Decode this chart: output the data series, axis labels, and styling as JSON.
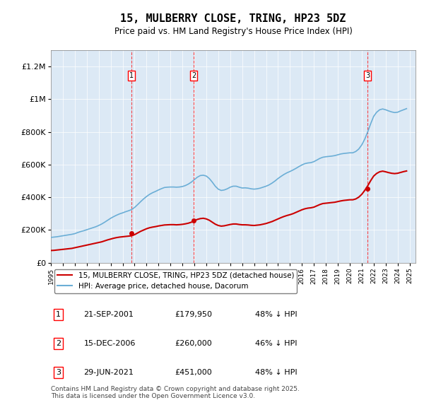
{
  "title": "15, MULBERRY CLOSE, TRING, HP23 5DZ",
  "subtitle": "Price paid vs. HM Land Registry's House Price Index (HPI)",
  "hpi_color": "#6baed6",
  "price_color": "#cc0000",
  "background_color": "#dce9f5",
  "plot_bg_color": "#dce9f5",
  "ylim": [
    0,
    1300000
  ],
  "yticks": [
    0,
    200000,
    400000,
    600000,
    800000,
    1000000,
    1200000
  ],
  "ytick_labels": [
    "£0",
    "£200K",
    "£400K",
    "£600K",
    "£800K",
    "£1M",
    "£1.2M"
  ],
  "xmin": 1995,
  "xmax": 2025.5,
  "transactions": [
    {
      "label": "1",
      "date": 2001.72,
      "price": 179950
    },
    {
      "label": "2",
      "date": 2006.95,
      "price": 260000
    },
    {
      "label": "3",
      "date": 2021.49,
      "price": 451000
    }
  ],
  "transaction_details": [
    {
      "num": "1",
      "date_str": "21-SEP-2001",
      "price_str": "£179,950",
      "pct": "48% ↓ HPI"
    },
    {
      "num": "2",
      "date_str": "15-DEC-2006",
      "price_str": "£260,000",
      "pct": "46% ↓ HPI"
    },
    {
      "num": "3",
      "date_str": "29-JUN-2021",
      "price_str": "£451,000",
      "pct": "48% ↓ HPI"
    }
  ],
  "legend_line1": "15, MULBERRY CLOSE, TRING, HP23 5DZ (detached house)",
  "legend_line2": "HPI: Average price, detached house, Dacorum",
  "footer": "Contains HM Land Registry data © Crown copyright and database right 2025.\nThis data is licensed under the Open Government Licence v3.0.",
  "hpi_x": [
    1995.0,
    1995.25,
    1995.5,
    1995.75,
    1996.0,
    1996.25,
    1996.5,
    1996.75,
    1997.0,
    1997.25,
    1997.5,
    1997.75,
    1998.0,
    1998.25,
    1998.5,
    1998.75,
    1999.0,
    1999.25,
    1999.5,
    1999.75,
    2000.0,
    2000.25,
    2000.5,
    2000.75,
    2001.0,
    2001.25,
    2001.5,
    2001.75,
    2002.0,
    2002.25,
    2002.5,
    2002.75,
    2003.0,
    2003.25,
    2003.5,
    2003.75,
    2004.0,
    2004.25,
    2004.5,
    2004.75,
    2005.0,
    2005.25,
    2005.5,
    2005.75,
    2006.0,
    2006.25,
    2006.5,
    2006.75,
    2007.0,
    2007.25,
    2007.5,
    2007.75,
    2008.0,
    2008.25,
    2008.5,
    2008.75,
    2009.0,
    2009.25,
    2009.5,
    2009.75,
    2010.0,
    2010.25,
    2010.5,
    2010.75,
    2011.0,
    2011.25,
    2011.5,
    2011.75,
    2012.0,
    2012.25,
    2012.5,
    2012.75,
    2013.0,
    2013.25,
    2013.5,
    2013.75,
    2014.0,
    2014.25,
    2014.5,
    2014.75,
    2015.0,
    2015.25,
    2015.5,
    2015.75,
    2016.0,
    2016.25,
    2016.5,
    2016.75,
    2017.0,
    2017.25,
    2017.5,
    2017.75,
    2018.0,
    2018.25,
    2018.5,
    2018.75,
    2019.0,
    2019.25,
    2019.5,
    2019.75,
    2020.0,
    2020.25,
    2020.5,
    2020.75,
    2021.0,
    2021.25,
    2021.5,
    2021.75,
    2022.0,
    2022.25,
    2022.5,
    2022.75,
    2023.0,
    2023.25,
    2023.5,
    2023.75,
    2024.0,
    2024.25,
    2024.5,
    2024.75
  ],
  "hpi_y": [
    155000,
    157000,
    159000,
    162000,
    165000,
    168000,
    171000,
    174000,
    178000,
    185000,
    191000,
    196000,
    202000,
    208000,
    214000,
    220000,
    228000,
    237000,
    248000,
    260000,
    272000,
    282000,
    291000,
    299000,
    305000,
    312000,
    318000,
    325000,
    338000,
    355000,
    373000,
    390000,
    405000,
    418000,
    428000,
    436000,
    445000,
    453000,
    460000,
    462000,
    463000,
    463000,
    462000,
    463000,
    466000,
    472000,
    481000,
    493000,
    508000,
    523000,
    533000,
    535000,
    530000,
    515000,
    493000,
    468000,
    450000,
    442000,
    445000,
    452000,
    462000,
    468000,
    468000,
    462000,
    457000,
    458000,
    456000,
    452000,
    450000,
    452000,
    456000,
    462000,
    468000,
    476000,
    487000,
    500000,
    515000,
    528000,
    540000,
    550000,
    558000,
    567000,
    577000,
    588000,
    598000,
    606000,
    610000,
    612000,
    618000,
    628000,
    638000,
    645000,
    648000,
    650000,
    652000,
    655000,
    660000,
    665000,
    668000,
    670000,
    672000,
    672000,
    680000,
    695000,
    720000,
    755000,
    800000,
    850000,
    895000,
    920000,
    935000,
    940000,
    935000,
    928000,
    922000,
    918000,
    920000,
    928000,
    935000,
    942000
  ],
  "price_x": [
    1995.0,
    1995.25,
    1995.5,
    1995.75,
    1996.0,
    1996.25,
    1996.5,
    1996.75,
    1997.0,
    1997.25,
    1997.5,
    1997.75,
    1998.0,
    1998.25,
    1998.5,
    1998.75,
    1999.0,
    1999.25,
    1999.5,
    1999.75,
    2000.0,
    2000.25,
    2000.5,
    2000.75,
    2001.0,
    2001.25,
    2001.5,
    2001.75,
    2002.0,
    2002.25,
    2002.5,
    2002.75,
    2003.0,
    2003.25,
    2003.5,
    2003.75,
    2004.0,
    2004.25,
    2004.5,
    2004.75,
    2005.0,
    2005.25,
    2005.5,
    2005.75,
    2006.0,
    2006.25,
    2006.5,
    2006.75,
    2007.0,
    2007.25,
    2007.5,
    2007.75,
    2008.0,
    2008.25,
    2008.5,
    2008.75,
    2009.0,
    2009.25,
    2009.5,
    2009.75,
    2010.0,
    2010.25,
    2010.5,
    2010.75,
    2011.0,
    2011.25,
    2011.5,
    2011.75,
    2012.0,
    2012.25,
    2012.5,
    2012.75,
    2013.0,
    2013.25,
    2013.5,
    2013.75,
    2014.0,
    2014.25,
    2014.5,
    2014.75,
    2015.0,
    2015.25,
    2015.5,
    2015.75,
    2016.0,
    2016.25,
    2016.5,
    2016.75,
    2017.0,
    2017.25,
    2017.5,
    2017.75,
    2018.0,
    2018.25,
    2018.5,
    2018.75,
    2019.0,
    2019.25,
    2019.5,
    2019.75,
    2020.0,
    2020.25,
    2020.5,
    2020.75,
    2021.0,
    2021.25,
    2021.5,
    2021.75,
    2022.0,
    2022.25,
    2022.5,
    2022.75,
    2023.0,
    2023.25,
    2023.5,
    2023.75,
    2024.0,
    2024.25,
    2024.5,
    2024.75
  ],
  "price_y": [
    75000,
    76000,
    78000,
    80000,
    82000,
    84000,
    86000,
    88000,
    92000,
    96000,
    100000,
    104000,
    108000,
    112000,
    116000,
    120000,
    124000,
    128000,
    134000,
    140000,
    145000,
    150000,
    154000,
    157000,
    159000,
    161000,
    163000,
    165000,
    172000,
    182000,
    192000,
    200000,
    208000,
    214000,
    218000,
    221000,
    225000,
    228000,
    231000,
    232000,
    233000,
    233000,
    232000,
    233000,
    235000,
    238000,
    242000,
    248000,
    257000,
    265000,
    270000,
    272000,
    268000,
    260000,
    248000,
    236000,
    228000,
    224000,
    226000,
    230000,
    234000,
    237000,
    237000,
    234000,
    232000,
    232000,
    231000,
    229000,
    228000,
    230000,
    232000,
    236000,
    240000,
    246000,
    252000,
    260000,
    268000,
    276000,
    283000,
    289000,
    294000,
    300000,
    308000,
    316000,
    324000,
    330000,
    334000,
    336000,
    340000,
    348000,
    356000,
    362000,
    364000,
    366000,
    368000,
    370000,
    374000,
    378000,
    381000,
    383000,
    385000,
    385000,
    390000,
    401000,
    418000,
    442000,
    470000,
    502000,
    530000,
    546000,
    556000,
    560000,
    556000,
    551000,
    547000,
    545000,
    547000,
    552000,
    557000,
    561000
  ]
}
